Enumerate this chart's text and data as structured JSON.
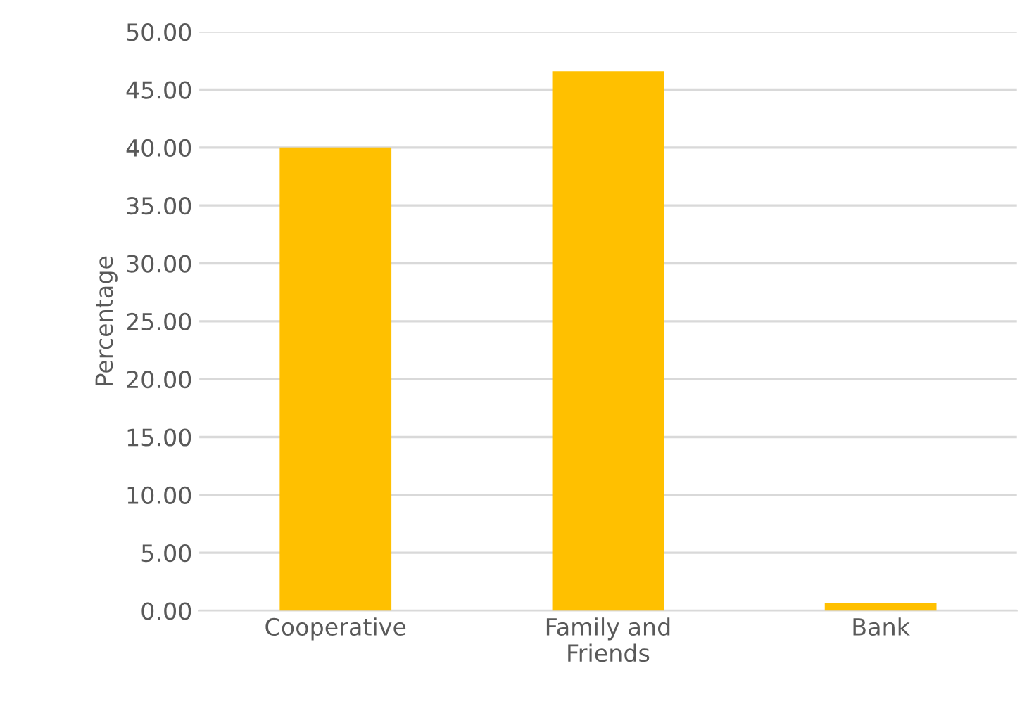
{
  "chart_data": {
    "type": "bar",
    "ylabel": "Percentage",
    "categories": [
      "Cooperative",
      "Family and\nFriends",
      "Bank"
    ],
    "values": [
      40.0,
      46.6,
      0.7
    ],
    "color": "#ffc000",
    "ylim": [
      0,
      50
    ],
    "yticks": [
      {
        "value": 0,
        "label": "0.00"
      },
      {
        "value": 5,
        "label": "5.00"
      },
      {
        "value": 10,
        "label": "10.00"
      },
      {
        "value": 15,
        "label": "15.00"
      },
      {
        "value": 20,
        "label": "20.00"
      },
      {
        "value": 25,
        "label": "25.00"
      },
      {
        "value": 30,
        "label": "30.00"
      },
      {
        "value": 35,
        "label": "35.00"
      },
      {
        "value": 40,
        "label": "40.00"
      },
      {
        "value": 45,
        "label": "45.00"
      },
      {
        "value": 50,
        "label": "50.00"
      }
    ],
    "grid": "y"
  }
}
